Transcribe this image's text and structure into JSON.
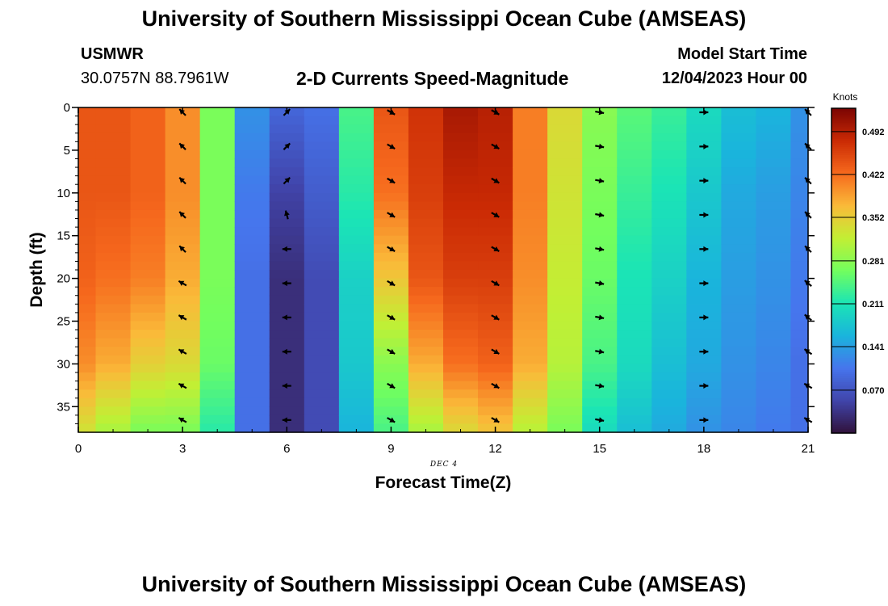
{
  "header": {
    "title": "University of Southern Mississippi Ocean Cube (AMSEAS)",
    "station": "USMWR",
    "coords": "30.0757N  88.7961W",
    "subtitle": "2-D Currents Speed-Magnitude",
    "model_start_label": "Model Start Time",
    "model_start_value": "12/04/2023 Hour 00"
  },
  "footer": {
    "title": "University of Southern Mississippi Ocean Cube (AMSEAS)"
  },
  "chart_data": {
    "type": "heatmap",
    "xlabel": "Forecast Time(Z)",
    "ylabel": "Depth (ft)",
    "date_label": "DEC 4",
    "xlim": [
      0,
      21
    ],
    "ylim": [
      0,
      38
    ],
    "x_ticks": [
      0,
      3,
      6,
      9,
      12,
      15,
      18,
      21
    ],
    "y_ticks": [
      0,
      5,
      10,
      15,
      20,
      25,
      30,
      35
    ],
    "colorbar": {
      "label": "Knots",
      "ticks": [
        "0.492",
        "0.422",
        "0.352",
        "0.281",
        "0.211",
        "0.141",
        "0.070"
      ],
      "tick_values": [
        0.492,
        0.422,
        0.352,
        0.281,
        0.211,
        0.141,
        0.07
      ],
      "range": [
        0.0,
        0.53
      ]
    },
    "profile_hours": [
      0,
      1,
      2,
      3,
      4,
      5,
      6,
      7,
      8,
      9,
      10,
      11,
      12,
      13,
      14,
      15,
      16,
      17,
      18,
      19,
      20,
      21
    ],
    "profile_depths": [
      0,
      10,
      20,
      30,
      38
    ],
    "speed_profiles": [
      [
        0.44,
        0.44,
        0.43,
        0.4,
        0.33
      ],
      [
        0.44,
        0.44,
        0.42,
        0.38,
        0.3
      ],
      [
        0.43,
        0.43,
        0.41,
        0.35,
        0.27
      ],
      [
        0.4,
        0.4,
        0.38,
        0.34,
        0.27
      ],
      [
        0.27,
        0.27,
        0.27,
        0.26,
        0.22
      ],
      [
        0.13,
        0.11,
        0.1,
        0.1,
        0.1
      ],
      [
        0.09,
        0.05,
        0.03,
        0.03,
        0.03
      ],
      [
        0.1,
        0.08,
        0.06,
        0.06,
        0.06
      ],
      [
        0.24,
        0.22,
        0.19,
        0.18,
        0.16
      ],
      [
        0.44,
        0.42,
        0.36,
        0.28,
        0.24
      ],
      [
        0.47,
        0.46,
        0.44,
        0.38,
        0.3
      ],
      [
        0.5,
        0.48,
        0.46,
        0.42,
        0.34
      ],
      [
        0.49,
        0.48,
        0.46,
        0.43,
        0.36
      ],
      [
        0.41,
        0.41,
        0.4,
        0.38,
        0.31
      ],
      [
        0.34,
        0.33,
        0.32,
        0.31,
        0.27
      ],
      [
        0.28,
        0.27,
        0.26,
        0.24,
        0.2
      ],
      [
        0.25,
        0.23,
        0.21,
        0.2,
        0.17
      ],
      [
        0.23,
        0.21,
        0.19,
        0.17,
        0.15
      ],
      [
        0.2,
        0.18,
        0.16,
        0.15,
        0.13
      ],
      [
        0.17,
        0.15,
        0.14,
        0.13,
        0.12
      ],
      [
        0.16,
        0.14,
        0.13,
        0.12,
        0.11
      ],
      [
        0.13,
        0.12,
        0.11,
        0.1,
        0.1
      ]
    ],
    "arrow_hours": [
      3,
      6,
      9,
      12,
      15,
      18,
      21
    ],
    "arrow_depths": [
      0,
      4,
      8,
      12,
      16,
      20,
      24,
      28,
      32,
      36
    ],
    "arrow_directions_deg": [
      [
        315,
        315,
        315,
        315,
        315,
        300,
        300,
        300,
        300,
        300
      ],
      [
        45,
        45,
        45,
        345,
        270,
        270,
        270,
        270,
        270,
        270
      ],
      [
        120,
        120,
        120,
        120,
        120,
        120,
        120,
        120,
        120,
        120
      ],
      [
        120,
        120,
        120,
        120,
        120,
        120,
        120,
        120,
        120,
        120
      ],
      [
        100,
        100,
        100,
        100,
        100,
        100,
        100,
        100,
        100,
        100
      ],
      [
        90,
        90,
        90,
        90,
        90,
        90,
        90,
        90,
        90,
        90
      ],
      [
        315,
        315,
        315,
        315,
        315,
        310,
        310,
        305,
        300,
        300
      ]
    ]
  }
}
